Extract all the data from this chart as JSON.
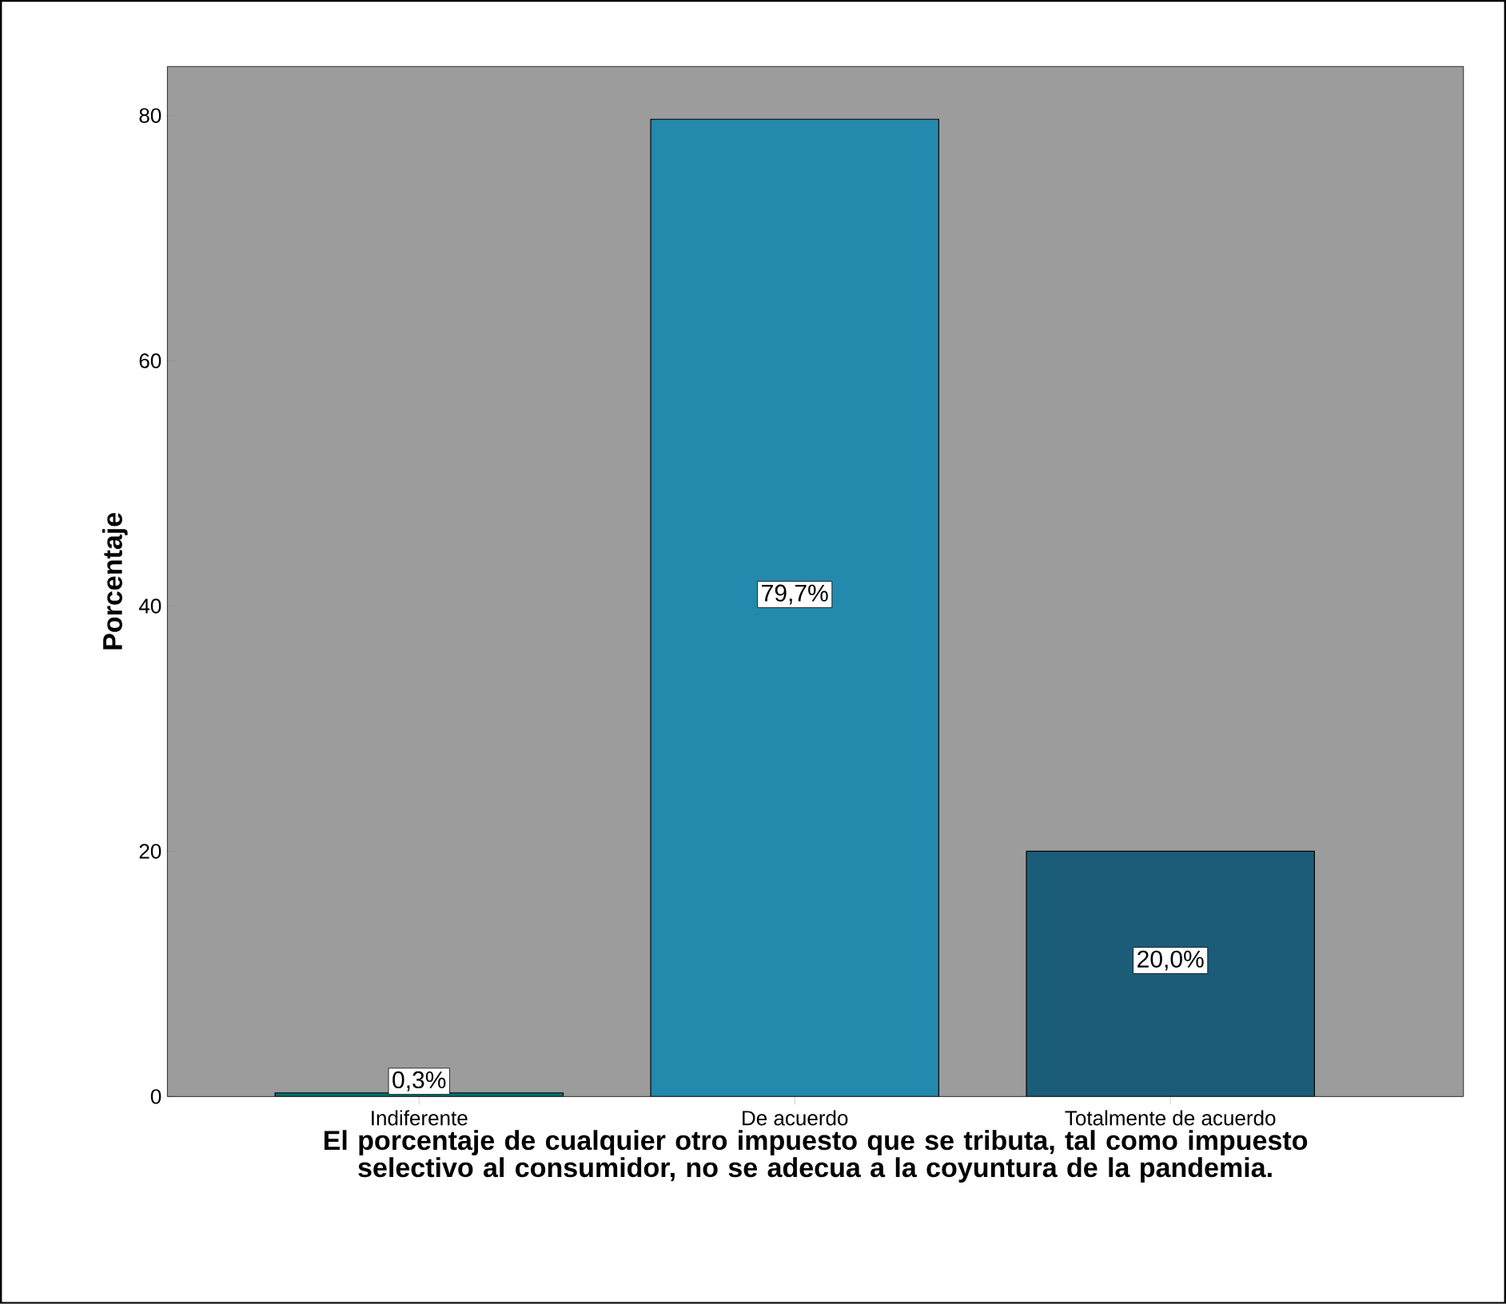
{
  "chart_data": {
    "type": "bar",
    "categories": [
      "Indiferente",
      "De acuerdo",
      "Totalmente de acuerdo"
    ],
    "values": [
      0.3,
      79.7,
      20.0
    ],
    "colors": [
      "#00706c",
      "#2389ad",
      "#1b5d78"
    ],
    "value_labels": [
      "0,3%",
      "79,7%",
      "20,0%"
    ],
    "ylabel": "Porcentaje",
    "xlabel": "El porcentaje de cualquier otro impuesto que se tributa, tal como impuesto selectivo al consumidor, no se adecua a la coyuntura de la pandemia.",
    "ylim": [
      0,
      84
    ],
    "yticks": [
      0,
      20,
      40,
      60,
      80
    ],
    "grid": false
  }
}
